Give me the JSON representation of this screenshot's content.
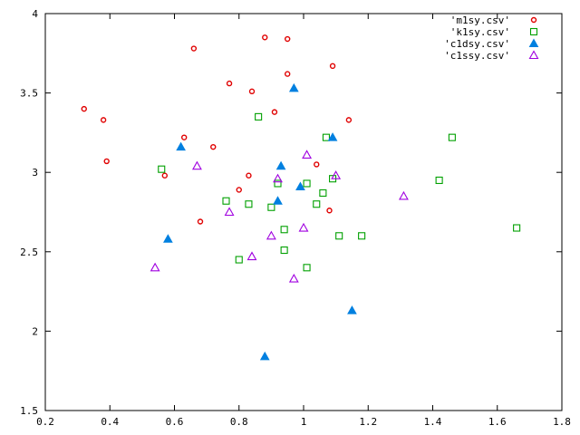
{
  "chart_data": {
    "type": "scatter",
    "xlim": [
      0.2,
      1.8
    ],
    "ylim": [
      1.5,
      4
    ],
    "x_ticks": [
      "0.2",
      "0.4",
      "0.6",
      "0.8",
      "1",
      "1.2",
      "1.4",
      "1.6",
      "1.8"
    ],
    "y_ticks": [
      "1.5",
      "2",
      "2.5",
      "3",
      "3.5",
      "4"
    ],
    "grid": false,
    "legend_position": "top-right",
    "series": [
      {
        "name": "'m1sy.csv'",
        "marker": "circle",
        "color": "#e00000",
        "points": [
          [
            0.32,
            3.4
          ],
          [
            0.38,
            3.33
          ],
          [
            0.39,
            3.07
          ],
          [
            0.57,
            2.98
          ],
          [
            0.63,
            3.22
          ],
          [
            0.66,
            3.78
          ],
          [
            0.68,
            2.69
          ],
          [
            0.72,
            3.16
          ],
          [
            0.77,
            3.56
          ],
          [
            0.8,
            2.89
          ],
          [
            0.83,
            2.98
          ],
          [
            0.84,
            3.51
          ],
          [
            0.88,
            3.85
          ],
          [
            0.91,
            3.38
          ],
          [
            0.95,
            3.84
          ],
          [
            0.95,
            3.62
          ],
          [
            1.04,
            3.05
          ],
          [
            1.08,
            2.76
          ],
          [
            1.09,
            3.67
          ],
          [
            1.14,
            3.33
          ]
        ]
      },
      {
        "name": "'k1sy.csv'",
        "marker": "square",
        "color": "#00a000",
        "points": [
          [
            0.56,
            3.02
          ],
          [
            0.76,
            2.82
          ],
          [
            0.8,
            2.45
          ],
          [
            0.83,
            2.8
          ],
          [
            0.86,
            3.35
          ],
          [
            0.9,
            2.78
          ],
          [
            0.92,
            2.93
          ],
          [
            0.94,
            2.64
          ],
          [
            0.94,
            2.51
          ],
          [
            1.01,
            2.93
          ],
          [
            1.01,
            2.4
          ],
          [
            1.04,
            2.8
          ],
          [
            1.06,
            2.87
          ],
          [
            1.07,
            3.22
          ],
          [
            1.09,
            2.96
          ],
          [
            1.11,
            2.6
          ],
          [
            1.18,
            2.6
          ],
          [
            1.42,
            2.95
          ],
          [
            1.46,
            3.22
          ],
          [
            1.66,
            2.65
          ]
        ]
      },
      {
        "name": "'c1dsy.csv'",
        "marker": "triangle-filled",
        "color": "#0080e0",
        "points": [
          [
            0.58,
            2.58
          ],
          [
            0.62,
            3.16
          ],
          [
            0.88,
            1.84
          ],
          [
            0.92,
            2.82
          ],
          [
            0.93,
            3.04
          ],
          [
            0.97,
            3.53
          ],
          [
            0.99,
            2.91
          ],
          [
            1.09,
            3.22
          ],
          [
            1.15,
            2.13
          ]
        ]
      },
      {
        "name": "'c1ssy.csv'",
        "marker": "triangle-open",
        "color": "#a000e0",
        "points": [
          [
            0.54,
            2.4
          ],
          [
            0.67,
            3.04
          ],
          [
            0.77,
            2.75
          ],
          [
            0.84,
            2.47
          ],
          [
            0.9,
            2.6
          ],
          [
            0.92,
            2.96
          ],
          [
            0.97,
            2.33
          ],
          [
            1.0,
            2.65
          ],
          [
            1.01,
            3.11
          ],
          [
            1.1,
            2.98
          ],
          [
            1.31,
            2.85
          ]
        ]
      }
    ]
  }
}
